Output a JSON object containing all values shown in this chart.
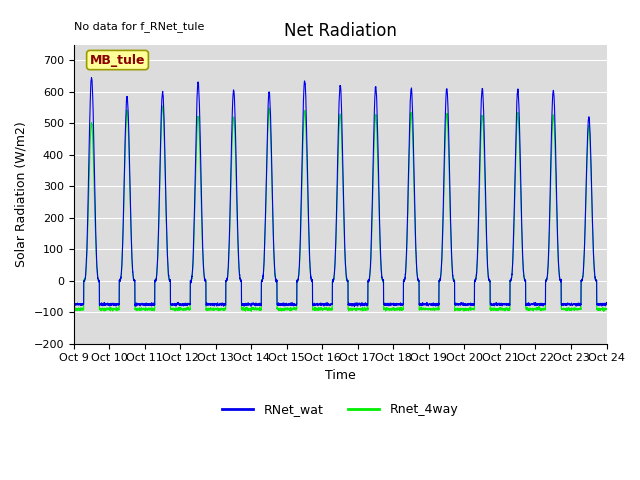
{
  "title": "Net Radiation",
  "xlabel": "Time",
  "ylabel": "Solar Radiation (W/m2)",
  "top_left_text": "No data for f_RNet_tule",
  "legend_box_text": "MB_tule",
  "ylim": [
    -200,
    750
  ],
  "yticks": [
    -200,
    -100,
    0,
    100,
    200,
    300,
    400,
    500,
    600,
    700
  ],
  "xtick_labels": [
    "Oct 9",
    "Oct 10",
    "Oct 11",
    "Oct 12",
    "Oct 13",
    "Oct 14",
    "Oct 15",
    "Oct 16",
    "Oct 17",
    "Oct 18",
    "Oct 19",
    "Oct 20",
    "Oct 21",
    "Oct 22",
    "Oct 23",
    "Oct 24"
  ],
  "line1_color": "#0000EE",
  "line2_color": "#00EE00",
  "line1_label": "RNet_wat",
  "line2_label": "Rnet_4way",
  "bg_color": "#DCDCDC",
  "n_days": 15,
  "points_per_day": 288,
  "day_peaks_blue": [
    645,
    585,
    600,
    630,
    605,
    600,
    635,
    620,
    615,
    610,
    610,
    610,
    605,
    605,
    520
  ],
  "day_peaks_green": [
    500,
    540,
    555,
    520,
    520,
    545,
    540,
    530,
    525,
    530,
    530,
    525,
    530,
    525,
    490
  ],
  "night_min_blue": -75,
  "night_min_green": -90,
  "title_fontsize": 12,
  "label_fontsize": 9,
  "tick_fontsize": 8
}
